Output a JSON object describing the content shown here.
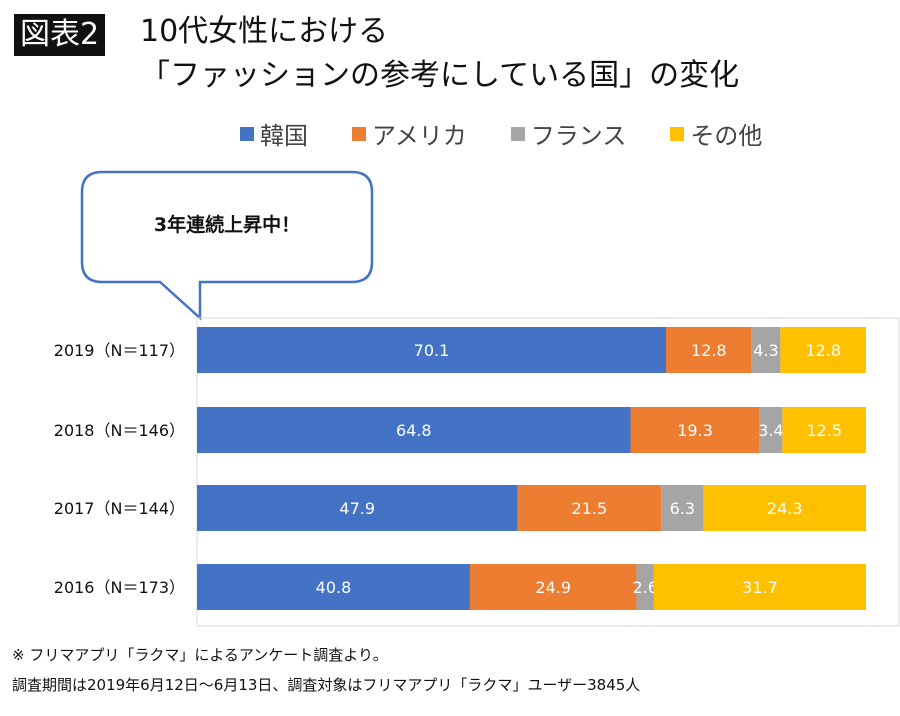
{
  "badge": "図表2",
  "title_line1": "10代女性における",
  "title_line2": "「ファッションの参考にしている国」の変化",
  "callout": "3年連続上昇中！",
  "notes": [
    "※ フリマアプリ「ラクマ」によるアンケート調査より。",
    "調査期間は2019年6月12日〜6月13日、調査対象はフリマアプリ「ラクマ」ユーザー3845人"
  ],
  "chart_data": {
    "type": "bar",
    "orientation": "horizontal",
    "stacked": true,
    "categories": [
      "2019（N＝117）",
      "2018（N＝146）",
      "2017（N＝144）",
      "2016（N＝173）"
    ],
    "series": [
      {
        "name": "韓国",
        "color": "#4472C4",
        "values": [
          70.1,
          64.8,
          47.9,
          40.8
        ]
      },
      {
        "name": "アメリカ",
        "color": "#ED7D31",
        "values": [
          12.8,
          19.3,
          21.5,
          24.9
        ]
      },
      {
        "name": "フランス",
        "color": "#A5A5A5",
        "values": [
          4.3,
          3.4,
          6.3,
          2.6
        ]
      },
      {
        "name": "その他",
        "color": "#FFC000",
        "values": [
          12.8,
          12.5,
          24.3,
          31.7
        ]
      }
    ],
    "xlim": [
      0,
      100
    ],
    "legend": "top",
    "grid": false
  }
}
